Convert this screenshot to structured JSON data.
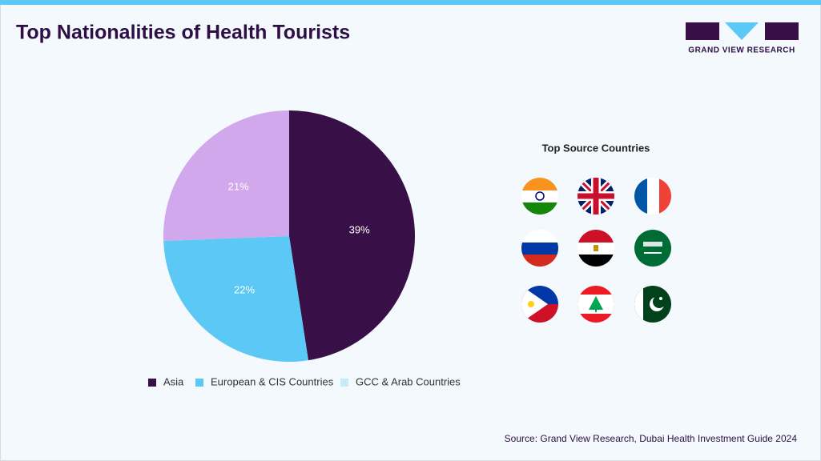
{
  "header": {
    "title": "Top Nationalities of Health Tourists",
    "logo_text": "GRAND VIEW RESEARCH"
  },
  "chart_data": {
    "type": "pie",
    "categories": [
      "Asia",
      "European & CIS Countries",
      "GCC & Arab Countries"
    ],
    "values": [
      39,
      22,
      21
    ],
    "value_labels": [
      "39%",
      "22%",
      "21%"
    ],
    "colors": [
      "#380f46",
      "#5bc8f5",
      "#d1a8eb"
    ],
    "legend_colors": [
      "#380f46",
      "#5bc8f5",
      "#c7e9f8"
    ]
  },
  "side_panel": {
    "title": "Top Source Countries"
  },
  "footer": {
    "source": "Source: Grand View Research, Dubai Health Investment Guide 2024"
  }
}
